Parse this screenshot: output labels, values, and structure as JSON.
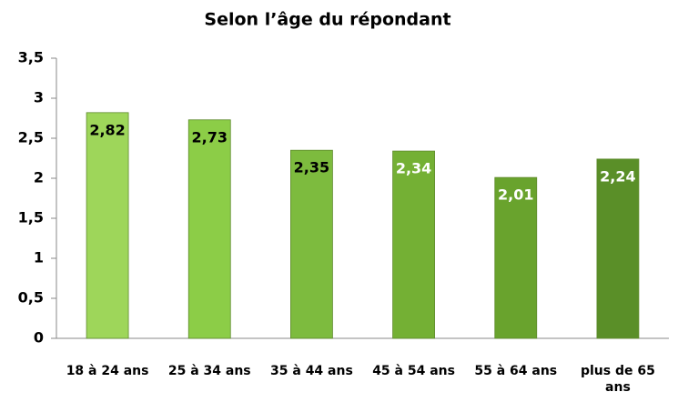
{
  "chart_data": {
    "type": "bar",
    "title": "Selon l’âge du répondant",
    "categories": [
      "18 à 24 ans",
      "25 à 34 ans",
      "35 à 44 ans",
      "45 à 54 ans",
      "55 à 64 ans",
      "plus de 65 ans"
    ],
    "values": [
      2.82,
      2.73,
      2.35,
      2.34,
      2.01,
      2.24
    ],
    "value_labels": [
      "2,82",
      "2,73",
      "2,35",
      "2,34",
      "2,01",
      "2,24"
    ],
    "colors": [
      "#9ed65a",
      "#8ccd47",
      "#7dbb3e",
      "#74b034",
      "#69a32d",
      "#5a8f28"
    ],
    "ylim": [
      0,
      3.5
    ],
    "yticks": [
      0,
      {
        "value": 0.5,
        "label": "0,5"
      },
      1,
      {
        "value": 1.5,
        "label": "1,5"
      },
      2,
      {
        "value": 2.5,
        "label": "2,5"
      },
      3,
      {
        "value": 3.5,
        "label": "3,5"
      }
    ]
  }
}
